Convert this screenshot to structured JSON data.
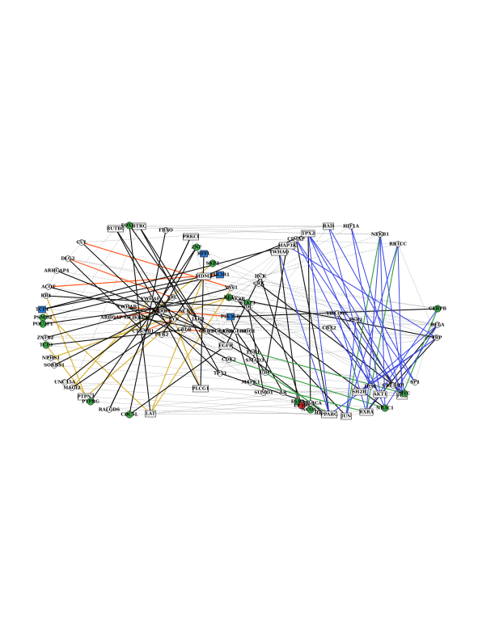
{
  "colors": {
    "background": "#ffffff",
    "thin": "#666666",
    "black": "#111111",
    "blue": "#3b47e6",
    "orange": "#ff5a1f",
    "yellow": "#d9b53a",
    "green": "#2e9e3a",
    "node_green": "#3fae49",
    "node_blue": "#2f7fd6",
    "node_red": "#d93030"
  },
  "nodes": [
    {
      "id": "n1",
      "label": "RUTBC",
      "shape": "rect"
    },
    {
      "id": "n2",
      "label": "FOXP4",
      "shape": "circle",
      "fill": "green"
    },
    {
      "id": "n3",
      "label": "BTRC",
      "shape": "rect"
    },
    {
      "id": "n4",
      "label": "FBXO",
      "shape": "circle"
    },
    {
      "id": "n5",
      "label": "PRKCI",
      "shape": "rect"
    },
    {
      "id": "n6",
      "label": "ZNF",
      "shape": "circle",
      "fill": "green"
    },
    {
      "id": "n7",
      "label": "RFFL",
      "shape": "rect",
      "fill": "blue"
    },
    {
      "id": "n8",
      "label": "SKP1",
      "shape": "circle",
      "fill": "green"
    },
    {
      "id": "n9",
      "label": "MDM2",
      "shape": "rect"
    },
    {
      "id": "n10",
      "label": "PIK3R1",
      "shape": "rect",
      "fill": "blue"
    },
    {
      "id": "n11",
      "label": "CUL",
      "shape": "circle"
    },
    {
      "id": "n12",
      "label": "DLG2",
      "shape": "circle"
    },
    {
      "id": "n13",
      "label": "ARHGAP4",
      "shape": "circle"
    },
    {
      "id": "n14",
      "label": "ACOT",
      "shape": "circle"
    },
    {
      "id": "n15",
      "label": "RB1",
      "shape": "circle"
    },
    {
      "id": "n16",
      "label": "TCF4",
      "shape": "rect",
      "fill": "blue"
    },
    {
      "id": "n17",
      "label": "PSMB2",
      "shape": "circle",
      "fill": "green"
    },
    {
      "id": "n18",
      "label": "POU2F1",
      "shape": "circle",
      "fill": "green"
    },
    {
      "id": "n19",
      "label": "ZNF82",
      "shape": "circle"
    },
    {
      "id": "n20",
      "label": "TCF3",
      "shape": "circle",
      "fill": "green"
    },
    {
      "id": "n21",
      "label": "NPHS1",
      "shape": "circle"
    },
    {
      "id": "n22",
      "label": "SORBS1",
      "shape": "circle"
    },
    {
      "id": "n23",
      "label": "UNC45A",
      "shape": "circle"
    },
    {
      "id": "n24",
      "label": "MAGI2",
      "shape": "circle"
    },
    {
      "id": "n25",
      "label": "PTPN2",
      "shape": "rect"
    },
    {
      "id": "n26",
      "label": "PTPRG",
      "shape": "circle",
      "fill": "green"
    },
    {
      "id": "n27",
      "label": "RALGDS",
      "shape": "circle"
    },
    {
      "id": "n28",
      "label": "CDC5L",
      "shape": "circle",
      "fill": "green"
    },
    {
      "id": "n29",
      "label": "LAT",
      "shape": "rect"
    },
    {
      "id": "n30",
      "label": "PLCG1",
      "shape": "rect"
    },
    {
      "id": "n31",
      "label": "SH3KBP1",
      "shape": "circle"
    },
    {
      "id": "n32",
      "label": "ARHGAP",
      "shape": "circle"
    },
    {
      "id": "n33",
      "label": "YWHAB",
      "shape": "circle"
    },
    {
      "id": "n34",
      "label": "YWHAE",
      "shape": "circle"
    },
    {
      "id": "n35",
      "label": "ARRB1",
      "shape": "circle"
    },
    {
      "id": "n36",
      "label": "FYN",
      "shape": "circle"
    },
    {
      "id": "n37",
      "label": "NCK1",
      "shape": "circle"
    },
    {
      "id": "n38",
      "label": "CBLB",
      "shape": "circle"
    },
    {
      "id": "n39",
      "label": "PTK2",
      "shape": "circle"
    },
    {
      "id": "n40",
      "label": "PIK3CB",
      "shape": "rect",
      "fill": "blue"
    },
    {
      "id": "n41",
      "label": "GRB2",
      "shape": "circle"
    },
    {
      "id": "n42",
      "label": "SOS1",
      "shape": "circle"
    },
    {
      "id": "n43",
      "label": "ERBB2",
      "shape": "circle"
    },
    {
      "id": "n44",
      "label": "EGFR",
      "shape": "rect"
    },
    {
      "id": "n45",
      "label": "PDGFRB",
      "shape": "circle"
    },
    {
      "id": "n46",
      "label": "SHC1",
      "shape": "circle"
    },
    {
      "id": "n47",
      "label": "RET",
      "shape": "circle",
      "fill": "green"
    },
    {
      "id": "n48",
      "label": "VAV1",
      "shape": "circle"
    },
    {
      "id": "n49",
      "label": "HCK",
      "shape": "circle"
    },
    {
      "id": "n50",
      "label": "CRK",
      "shape": "circle"
    },
    {
      "id": "n51",
      "label": "STAT3",
      "shape": "circle",
      "fill": "green"
    },
    {
      "id": "n52",
      "label": "JAK2",
      "shape": "circle"
    },
    {
      "id": "n53",
      "label": "SRC",
      "shape": "circle"
    },
    {
      "id": "n54",
      "label": "CTNNB1",
      "shape": "circle"
    },
    {
      "id": "n55",
      "label": "MAP3K",
      "shape": "rect"
    },
    {
      "id": "n56",
      "label": "YWHAQ",
      "shape": "rect"
    },
    {
      "id": "n57",
      "label": "TPX2",
      "shape": "rect"
    },
    {
      "id": "n58",
      "label": "CIMAP",
      "shape": "circle"
    },
    {
      "id": "n59",
      "label": "ESR1",
      "shape": "circle"
    },
    {
      "id": "n60",
      "label": "SMAD3",
      "shape": "circle"
    },
    {
      "id": "n61",
      "label": "CDK2",
      "shape": "circle"
    },
    {
      "id": "n62",
      "label": "TP53",
      "shape": "circle"
    },
    {
      "id": "n63",
      "label": "MAPK1",
      "shape": "circle"
    },
    {
      "id": "n64",
      "label": "UBC",
      "shape": "circle"
    },
    {
      "id": "n65",
      "label": "SUMO1",
      "shape": "circle"
    },
    {
      "id": "n66",
      "label": "AR",
      "shape": "circle"
    },
    {
      "id": "n67",
      "label": "ESR2",
      "shape": "circle",
      "fill": "green"
    },
    {
      "id": "n68",
      "label": "SMARCA",
      "shape": "circle"
    },
    {
      "id": "n69",
      "label": "HDAC1",
      "shape": "circle"
    },
    {
      "id": "n70",
      "label": "EP300",
      "shape": "circle",
      "fill": "red"
    },
    {
      "id": "n71",
      "label": "NCOA3",
      "shape": "circle",
      "fill": "green"
    },
    {
      "id": "n72",
      "label": "PPARG",
      "shape": "rect"
    },
    {
      "id": "n73",
      "label": "JUN",
      "shape": "rect"
    },
    {
      "id": "n74",
      "label": "RXRA",
      "shape": "rect"
    },
    {
      "id": "n75",
      "label": "NR3C1",
      "shape": "circle",
      "fill": "green"
    },
    {
      "id": "n76",
      "label": "FOS",
      "shape": "rect"
    },
    {
      "id": "n77",
      "label": "MYC",
      "shape": "circle",
      "fill": "green"
    },
    {
      "id": "n78",
      "label": "CREBBP",
      "shape": "circle"
    },
    {
      "id": "n79",
      "label": "SP1",
      "shape": "circle"
    },
    {
      "id": "n80",
      "label": "TBP",
      "shape": "circle"
    },
    {
      "id": "n81",
      "label": "RELA",
      "shape": "circle"
    },
    {
      "id": "n82",
      "label": "CEBPB",
      "shape": "circle",
      "fill": "green"
    },
    {
      "id": "n83",
      "label": "RB1CC",
      "shape": "circle"
    },
    {
      "id": "n84",
      "label": "NFKB1",
      "shape": "circle"
    },
    {
      "id": "n85",
      "label": "HIF1A",
      "shape": "circle"
    },
    {
      "id": "n86",
      "label": "RAD",
      "shape": "rect"
    },
    {
      "id": "n87",
      "label": "YBX1MC",
      "shape": "circle"
    },
    {
      "id": "n88",
      "label": "PSR2",
      "shape": "circle"
    },
    {
      "id": "n89",
      "label": "CBX2",
      "shape": "circle"
    },
    {
      "id": "n90",
      "label": "SH2B",
      "shape": "rect"
    },
    {
      "id": "n91",
      "label": "IRS1",
      "shape": "circle"
    },
    {
      "id": "n92",
      "label": "AKT1",
      "shape": "rect"
    },
    {
      "id": "n93",
      "label": "GSK3B",
      "shape": "circle"
    },
    {
      "id": "n94",
      "label": "CDC",
      "shape": "circle"
    }
  ]
}
